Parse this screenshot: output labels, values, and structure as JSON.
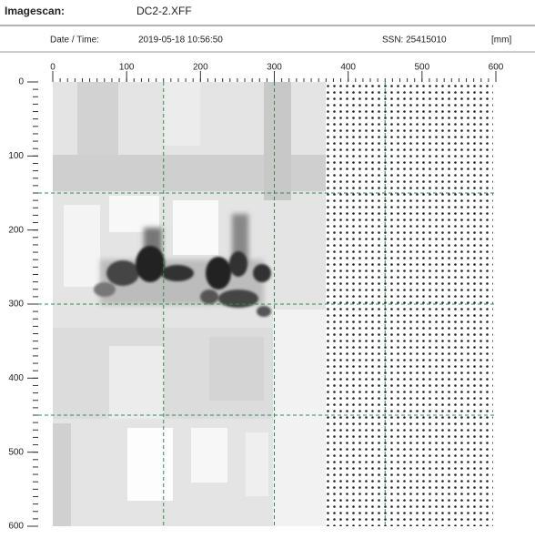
{
  "header": {
    "title": "Imagescan:",
    "file": "DC2-2.XFF"
  },
  "info": {
    "date_label": "Date / Time:",
    "date": "2019-05-18 10:56:50",
    "ssn": "SSN: 25415010",
    "unit": "[mm]"
  },
  "axes": {
    "xlim": [
      0,
      600
    ],
    "xticks": [
      0,
      100,
      200,
      300,
      400,
      500,
      600
    ],
    "ylim": [
      0,
      600
    ],
    "yticks": [
      0,
      100,
      200,
      300,
      400,
      500,
      600
    ],
    "grid": [
      150,
      300,
      450
    ]
  }
}
